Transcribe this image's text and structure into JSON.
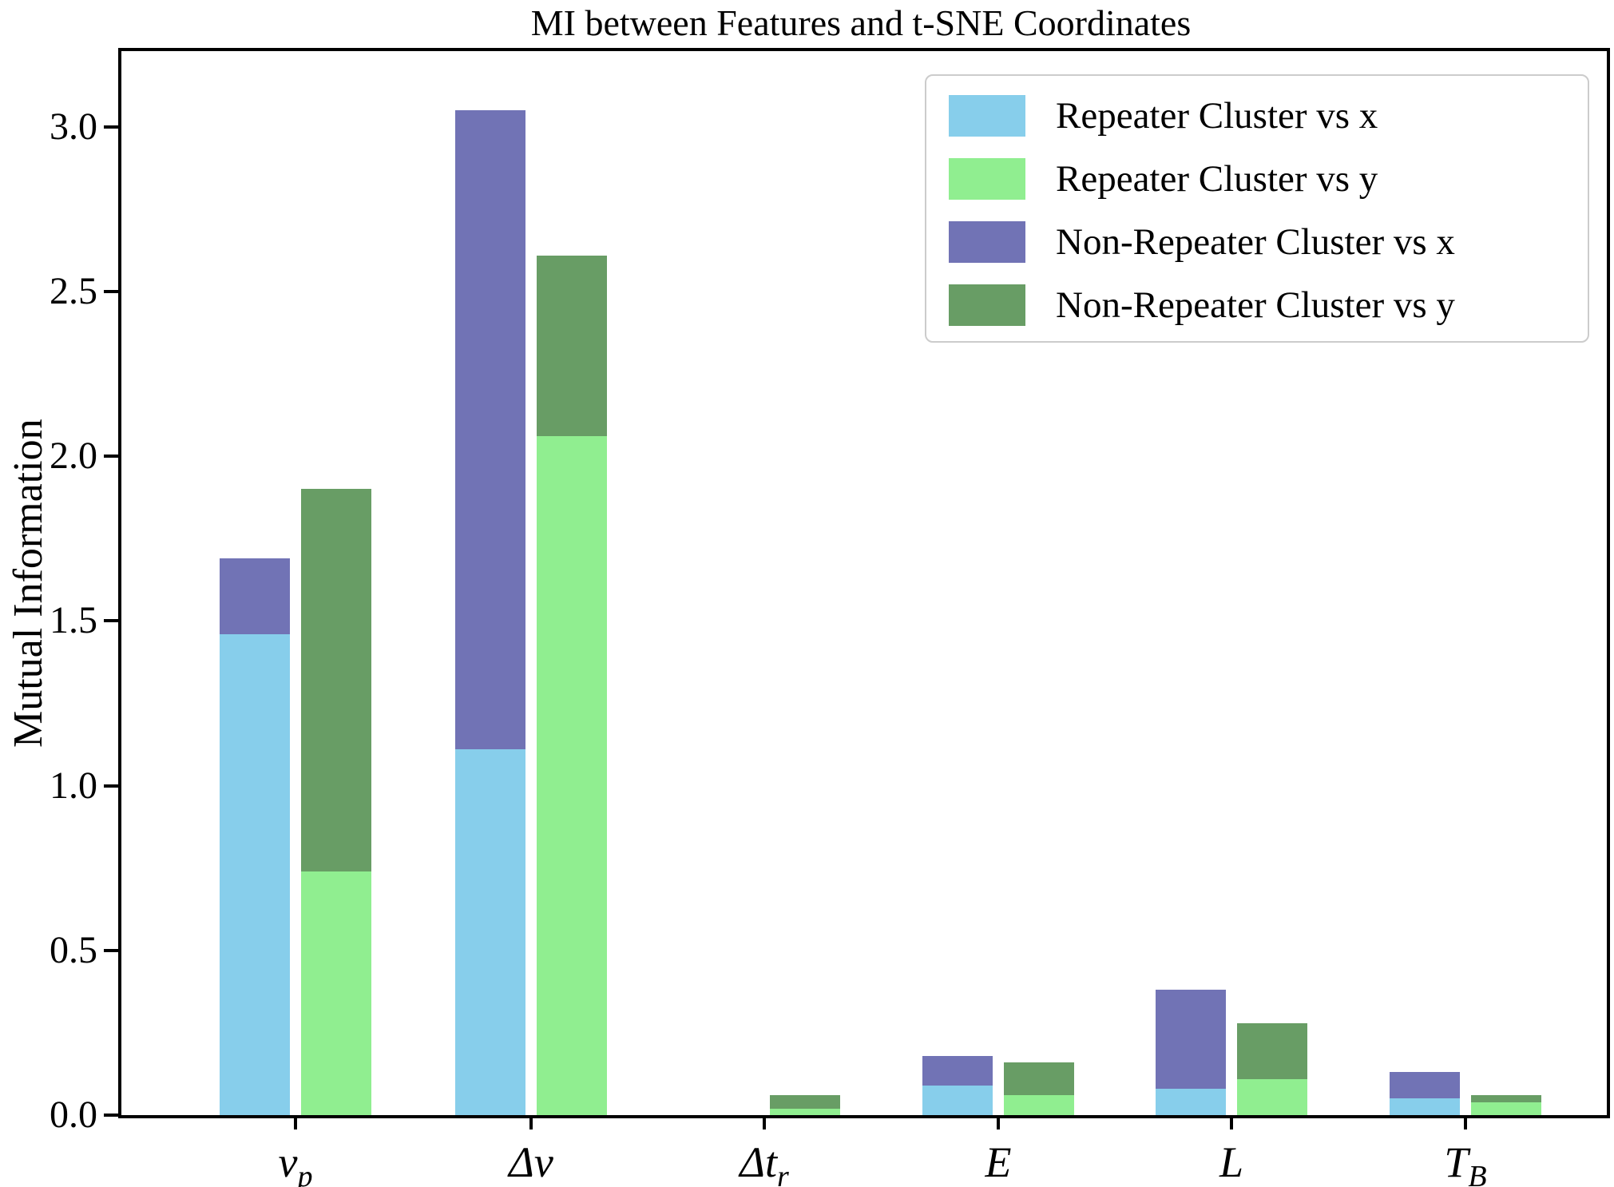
{
  "chart_data": {
    "type": "bar",
    "title": "MI between Features and t-SNE Coordinates",
    "xlabel": "",
    "ylabel": "Mutual Information",
    "ylim": [
      0.0,
      3.23
    ],
    "yticks": [
      0.0,
      0.5,
      1.0,
      1.5,
      2.0,
      2.5,
      3.0
    ],
    "ytick_labels": [
      "0.0",
      "0.5",
      "1.0",
      "1.5",
      "2.0",
      "2.5",
      "3.0"
    ],
    "grid": false,
    "legend_position": "upper right",
    "bar_style": "paired overlay: non-repeater bars drawn from 0 behind repeater bars at same x position",
    "categories": [
      "ν_p",
      "Δν",
      "Δt_r",
      "E",
      "L",
      "T_B"
    ],
    "category_labels": [
      {
        "text": "ν",
        "sub": "p"
      },
      {
        "text": "Δν",
        "sub": ""
      },
      {
        "text": "Δt",
        "sub": "r"
      },
      {
        "text": "E",
        "sub": ""
      },
      {
        "text": "L",
        "sub": ""
      },
      {
        "text": "T",
        "sub": "B"
      }
    ],
    "series": [
      {
        "name": "Repeater Cluster vs x",
        "color": "#87CEEB",
        "pair": "x",
        "layer": "front",
        "values": [
          1.46,
          1.11,
          0.0,
          0.09,
          0.08,
          0.05
        ]
      },
      {
        "name": "Repeater Cluster vs y",
        "color": "#90EE90",
        "pair": "y",
        "layer": "front",
        "values": [
          0.74,
          2.06,
          0.02,
          0.06,
          0.11,
          0.04
        ]
      },
      {
        "name": "Non-Repeater Cluster vs x",
        "color": "#7173B5",
        "pair": "x",
        "layer": "back",
        "values": [
          1.69,
          3.05,
          0.0,
          0.18,
          0.38,
          0.13
        ]
      },
      {
        "name": "Non-Repeater Cluster vs y",
        "color": "#689D65",
        "pair": "y",
        "layer": "back",
        "values": [
          1.9,
          2.61,
          0.06,
          0.16,
          0.28,
          0.06
        ]
      }
    ],
    "colors": {
      "axis": "#000000",
      "background": "#ffffff",
      "legend_border": "#cccccc"
    }
  }
}
